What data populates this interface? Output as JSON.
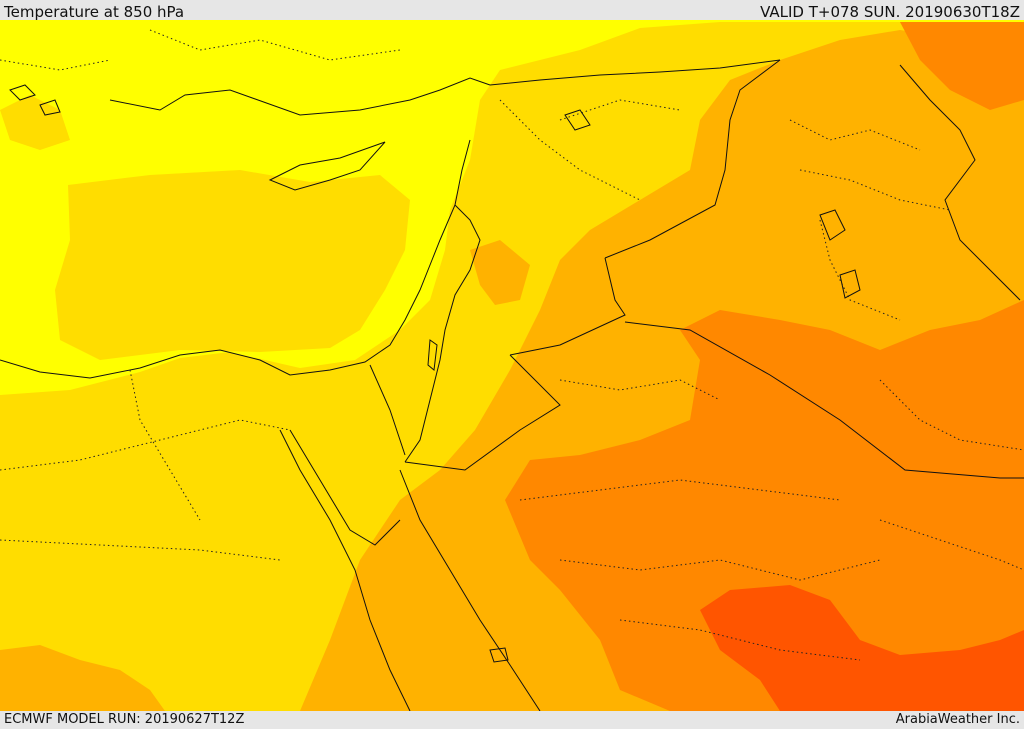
{
  "header": {
    "title": "Temperature at 850 hPa",
    "valid": "VALID T+078 SUN. 20190630T18Z"
  },
  "footer": {
    "model_run": "ECMWF MODEL RUN: 20190627T12Z",
    "credit": "ArabiaWeather Inc."
  },
  "colors": {
    "band1": "#ffff00",
    "band2": "#ffdd00",
    "band3": "#ffb200",
    "band4": "#ff8800",
    "band5": "#ff5500",
    "border": "#111111",
    "frame": "#e6e6e6"
  }
}
